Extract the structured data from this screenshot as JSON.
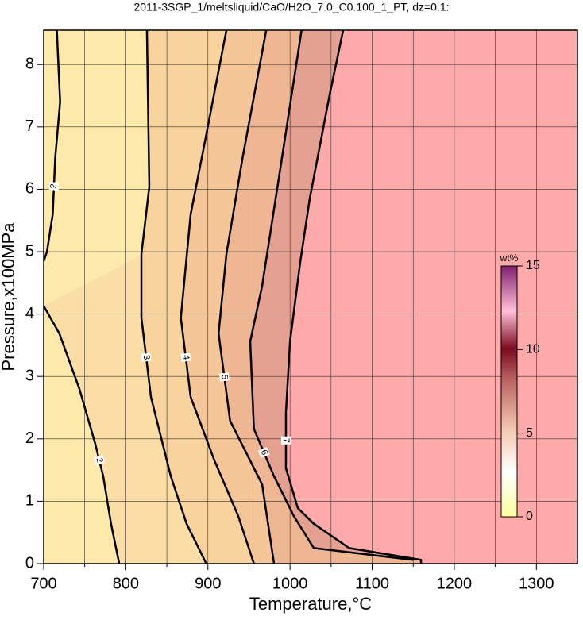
{
  "chart_data": {
    "type": "contour",
    "title": "2011-3SGP_1/meltsliquid/CaO/H2O_7.0_C0.100_1_PT, dz=0.1:",
    "x_label": "Temperature,°C",
    "y_label": "Pressure,x100MPa",
    "xlim": [
      700,
      1350
    ],
    "ylim": [
      0,
      8.55
    ],
    "xticks": [
      700,
      800,
      900,
      1000,
      1100,
      1200,
      1300
    ],
    "xminor_ticks": [
      750,
      850,
      950,
      1050,
      1150,
      1250
    ],
    "yticks": [
      0,
      1,
      2,
      3,
      4,
      5,
      6,
      7,
      8
    ],
    "grid": true,
    "colorbar_label": "wt%",
    "colorbar_lim": [
      0,
      15
    ],
    "colorbar_ticks": [
      0,
      5,
      10,
      15
    ],
    "contours": [
      {
        "level": 2,
        "color": "#fbdea5",
        "x": [
          700,
          719,
          743.5,
          763,
          772.5,
          782,
          792
        ],
        "y": [
          4.13,
          3.69,
          2.8,
          1.91,
          1.4,
          0.64,
          0
        ]
      },
      {
        "level": 2,
        "x": [
          716,
          720,
          714,
          711,
          704,
          700
        ],
        "y": [
          8.55,
          7.4,
          6.5,
          5.6,
          5.0,
          4.85
        ]
      },
      {
        "level": 3,
        "color": "#f9d39e",
        "x": [
          825.7,
          828.6,
          819,
          819,
          830.6,
          854.8,
          874,
          898
        ],
        "y": [
          8.55,
          6.04,
          4.96,
          3.94,
          2.67,
          1.4,
          0.64,
          0
        ]
      },
      {
        "level": 4,
        "color": "#f5c697",
        "x": [
          922.5,
          896,
          879,
          867,
          879,
          908,
          937,
          956
        ],
        "y": [
          8.55,
          6.74,
          5.6,
          3.94,
          2.67,
          1.65,
          0.76,
          0
        ]
      },
      {
        "level": 5,
        "color": "#efb693",
        "x": [
          971,
          942,
          922.5,
          913,
          927,
          966,
          980.5
        ],
        "y": [
          8.55,
          6.49,
          4.96,
          3.69,
          2.29,
          1.27,
          0
        ]
      },
      {
        "level": 6,
        "color": "#e4a090",
        "x": [
          1014,
          990,
          966,
          951.5,
          956,
          980.5,
          1004.7,
          1028.9,
          1149.8
        ],
        "y": [
          8.55,
          6.49,
          4.45,
          3.56,
          2.16,
          1.4,
          0.76,
          0.25,
          0.06
        ]
      },
      {
        "level": 7,
        "color": "#ffaaaa",
        "x": [
          1064.7,
          1048,
          1024,
          1012.4,
          1000,
          995,
          995,
          1009.5,
          1028.9,
          1072,
          1159.5,
          1159.5
        ],
        "y": [
          8.55,
          7.5,
          5.85,
          4.83,
          3.56,
          2.42,
          1.53,
          0.89,
          0.64,
          0.25,
          0.06,
          0
        ]
      }
    ]
  }
}
